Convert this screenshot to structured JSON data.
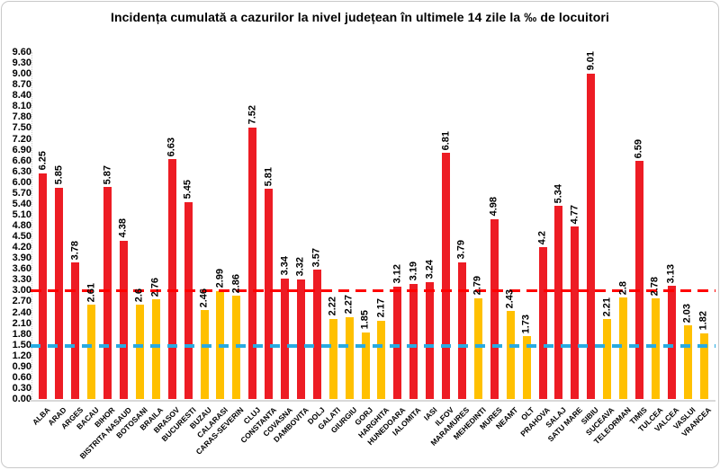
{
  "page": {
    "title": "Incidența cumulată a cazurilor la nivel județean în ultimele 14 zile la ‰ de locuitori"
  },
  "chart_data": {
    "type": "bar",
    "title": "Incidența cumulată a cazurilor la nivel județean în ultimele 14 zile la ‰ de locuitori",
    "xlabel": "",
    "ylabel": "",
    "ylim": [
      0,
      9.6
    ],
    "y_tick_step": 0.3,
    "y_tick_decimals": 2,
    "grid": false,
    "legend": "none",
    "categories": [
      "ALBA",
      "ARAD",
      "ARGES",
      "BACAU",
      "BIHOR",
      "BISTRITA NASAUD",
      "BOTOSANI",
      "BRAILA",
      "BRASOV",
      "BUCURESTI",
      "BUZAU",
      "CALARASI",
      "CARAS-SEVERIN",
      "CLUJ",
      "CONSTANTA",
      "COVASNA",
      "DAMBOVITA",
      "DOLJ",
      "GALATI",
      "GIURGIU",
      "GORJ",
      "HARGHITA",
      "HUNEDOARA",
      "IALOMITA",
      "IASI",
      "ILFOV",
      "MARAMURES",
      "MEHEDINTI",
      "MURES",
      "NEAMT",
      "OLT",
      "PRAHOVA",
      "SALAJ",
      "SATU MARE",
      "SIBIU",
      "SUCEAVA",
      "TELEORMAN",
      "TIMIS",
      "TULCEA",
      "VALCEA",
      "VASLUI",
      "VRANCEA"
    ],
    "values": [
      6.25,
      5.85,
      3.78,
      2.61,
      5.87,
      4.38,
      2.6,
      2.76,
      6.63,
      5.45,
      2.46,
      2.99,
      2.86,
      7.52,
      5.81,
      3.34,
      3.32,
      3.57,
      2.22,
      2.27,
      1.85,
      2.17,
      3.12,
      3.19,
      3.24,
      6.81,
      3.79,
      2.79,
      4.98,
      2.43,
      1.73,
      4.2,
      5.34,
      4.77,
      9.01,
      2.21,
      2.8,
      6.59,
      2.78,
      3.13,
      2.03,
      1.82
    ],
    "value_labels": [
      "6.25",
      "5.85",
      "3.78",
      "2.61",
      "5.87",
      "4.38",
      "2.6",
      "2.76",
      "6.63",
      "5.45",
      "2.46",
      "2.99",
      "2.86",
      "7.52",
      "5.81",
      "3.34",
      "3.32",
      "3.57",
      "2.22",
      "2.27",
      "1.85",
      "2.17",
      "3.12",
      "3.19",
      "3.24",
      "6.81",
      "3.79",
      "2.79",
      "4.98",
      "2.43",
      "1.73",
      "4.2",
      "5.34",
      "4.77",
      "9.01",
      "2.21",
      "2.8",
      "6.59",
      "2.78",
      "3.13",
      "2.03",
      "1.82"
    ],
    "bar_color_rule": {
      "threshold": 3.0,
      "at_or_above_color": "#ed1c24",
      "below_color": "#ffc000"
    },
    "reference_lines": [
      {
        "name": "upper-threshold",
        "value": 3.0,
        "color": "#ff0000",
        "style": "dashed"
      },
      {
        "name": "lower-threshold",
        "value": 1.5,
        "color": "#29abe2",
        "style": "dashed"
      }
    ]
  }
}
